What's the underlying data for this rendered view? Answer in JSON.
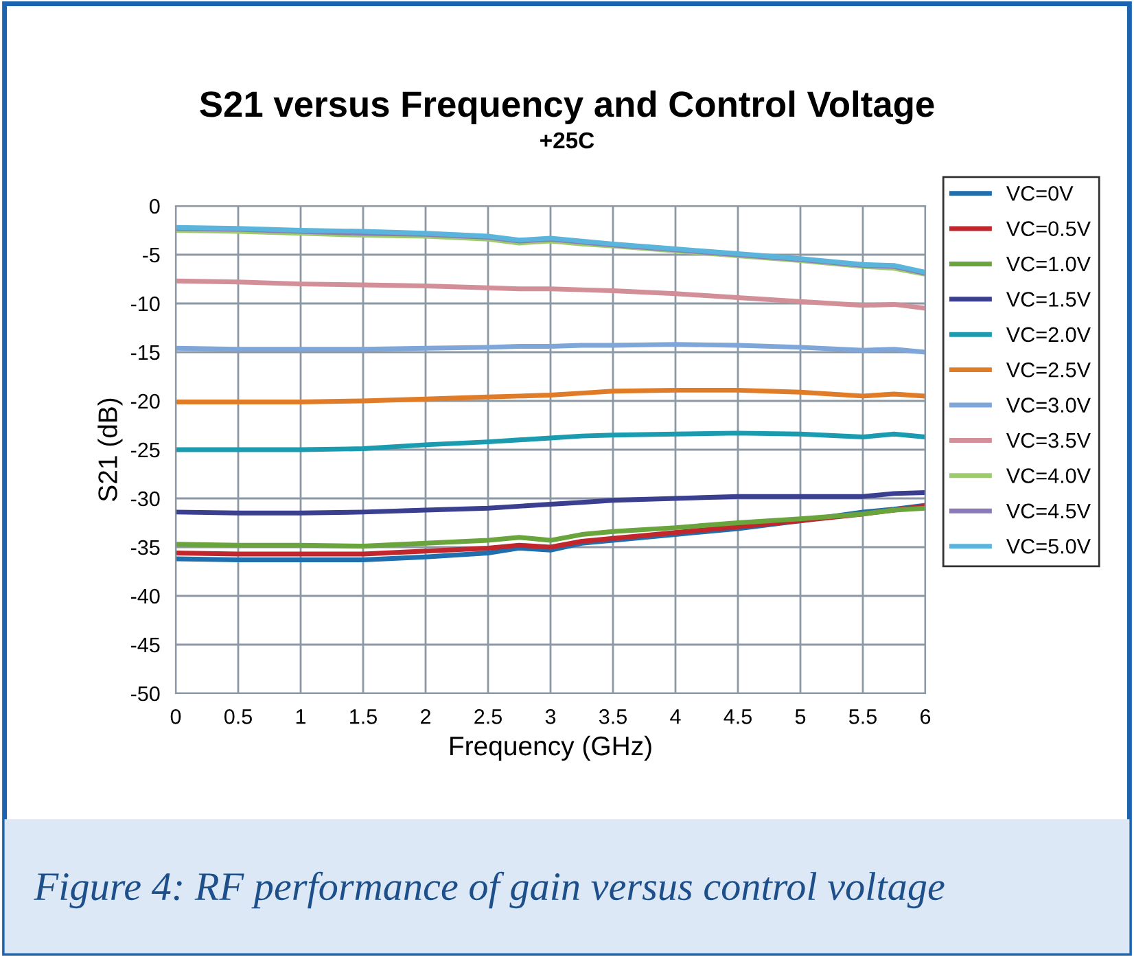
{
  "chart_data": {
    "type": "line",
    "title": "S21 versus Frequency and Control Voltage",
    "subtitle": "+25C",
    "xlabel": "Frequency (GHz)",
    "ylabel": "S21 (dB)",
    "x": [
      0,
      0.5,
      1,
      1.5,
      2,
      2.5,
      2.75,
      3,
      3.25,
      3.5,
      4,
      4.5,
      5,
      5.5,
      5.75,
      6
    ],
    "xlim": [
      0,
      6
    ],
    "xticks": [
      0,
      0.5,
      1,
      1.5,
      2,
      2.5,
      3,
      3.5,
      4,
      4.5,
      5,
      5.5,
      6
    ],
    "ylim": [
      -50,
      0
    ],
    "yticks": [
      -50,
      -45,
      -40,
      -35,
      -30,
      -25,
      -20,
      -15,
      -10,
      -5,
      0
    ],
    "grid": true,
    "legend": "right",
    "marker": "none",
    "line_style": "solid",
    "annotations": [
      "Figure 4: RF performance of gain versus control voltage"
    ],
    "series": [
      {
        "name": "VC=0V",
        "color": "#1f6fae",
        "values": [
          -36.2,
          -36.3,
          -36.3,
          -36.3,
          -36.0,
          -35.6,
          -35.1,
          -35.3,
          -34.6,
          -34.3,
          -33.7,
          -33.1,
          -32.3,
          -31.4,
          -31.1,
          -30.7
        ]
      },
      {
        "name": "VC=0.5V",
        "color": "#c0262c",
        "values": [
          -35.6,
          -35.7,
          -35.7,
          -35.7,
          -35.4,
          -35.1,
          -34.8,
          -35.0,
          -34.4,
          -34.1,
          -33.5,
          -32.9,
          -32.3,
          -31.6,
          -31.2,
          -30.8
        ]
      },
      {
        "name": "VC=1.0V",
        "color": "#6aa43c",
        "values": [
          -34.7,
          -34.8,
          -34.8,
          -34.9,
          -34.6,
          -34.3,
          -34.0,
          -34.3,
          -33.7,
          -33.4,
          -33.0,
          -32.5,
          -32.1,
          -31.6,
          -31.2,
          -31.0
        ]
      },
      {
        "name": "VC=1.5V",
        "color": "#3b3f8f",
        "values": [
          -31.4,
          -31.5,
          -31.5,
          -31.4,
          -31.2,
          -31.0,
          -30.8,
          -30.6,
          -30.4,
          -30.2,
          -30.0,
          -29.8,
          -29.8,
          -29.8,
          -29.5,
          -29.4
        ]
      },
      {
        "name": "VC=2.0V",
        "color": "#1b9bb0",
        "values": [
          -25.0,
          -25.0,
          -25.0,
          -24.9,
          -24.5,
          -24.2,
          -24.0,
          -23.8,
          -23.6,
          -23.5,
          -23.4,
          -23.3,
          -23.4,
          -23.7,
          -23.4,
          -23.7
        ]
      },
      {
        "name": "VC=2.5V",
        "color": "#e07b28",
        "values": [
          -20.1,
          -20.1,
          -20.1,
          -20.0,
          -19.8,
          -19.6,
          -19.5,
          -19.4,
          -19.2,
          -19.0,
          -18.9,
          -18.9,
          -19.1,
          -19.5,
          -19.3,
          -19.5
        ]
      },
      {
        "name": "VC=3.0V",
        "color": "#7ea6d8",
        "values": [
          -14.6,
          -14.7,
          -14.7,
          -14.7,
          -14.6,
          -14.5,
          -14.4,
          -14.4,
          -14.3,
          -14.3,
          -14.2,
          -14.3,
          -14.5,
          -14.8,
          -14.7,
          -15.0
        ]
      },
      {
        "name": "VC=3.5V",
        "color": "#d38f98",
        "values": [
          -7.7,
          -7.8,
          -8.0,
          -8.1,
          -8.2,
          -8.4,
          -8.5,
          -8.5,
          -8.6,
          -8.7,
          -9.0,
          -9.4,
          -9.8,
          -10.2,
          -10.1,
          -10.5
        ]
      },
      {
        "name": "VC=4.0V",
        "color": "#9ccc6c",
        "values": [
          -2.5,
          -2.6,
          -2.8,
          -3.0,
          -3.1,
          -3.4,
          -3.8,
          -3.6,
          -3.9,
          -4.1,
          -4.6,
          -5.1,
          -5.6,
          -6.2,
          -6.4,
          -7.0
        ]
      },
      {
        "name": "VC=4.5V",
        "color": "#8a7bb8",
        "values": [
          -2.3,
          -2.4,
          -2.6,
          -2.8,
          -2.9,
          -3.2,
          -3.6,
          -3.4,
          -3.7,
          -4.0,
          -4.5,
          -5.0,
          -5.5,
          -6.1,
          -6.2,
          -6.9
        ]
      },
      {
        "name": "VC=5.0V",
        "color": "#5bb4dc",
        "values": [
          -2.2,
          -2.3,
          -2.5,
          -2.6,
          -2.8,
          -3.1,
          -3.5,
          -3.3,
          -3.6,
          -3.9,
          -4.4,
          -4.9,
          -5.4,
          -6.0,
          -6.1,
          -6.8
        ]
      }
    ]
  }
}
